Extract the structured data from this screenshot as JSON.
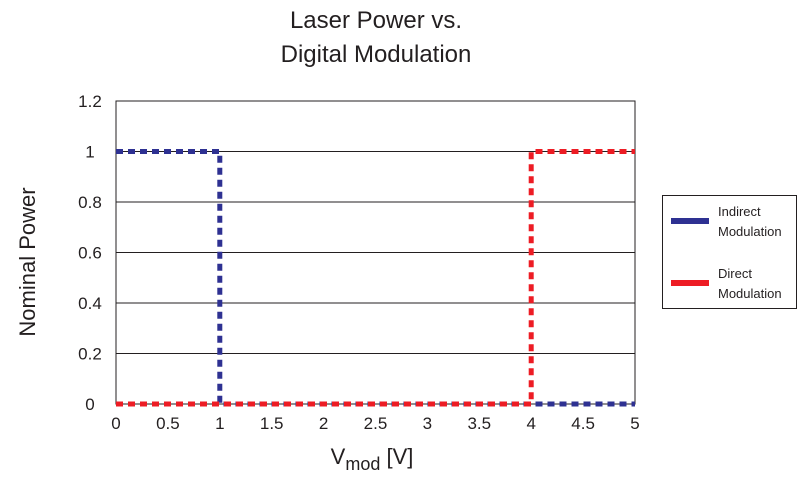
{
  "chart_data": {
    "type": "line",
    "title_line1": "Laser Power vs.",
    "title_line2": "Digital Modulation",
    "xlabel_main": "V",
    "xlabel_sub": "mod",
    "xlabel_unit": " [V]",
    "ylabel": "Nominal Power",
    "xlim": [
      0,
      5
    ],
    "ylim": [
      0,
      1.2
    ],
    "x_ticks": [
      "0",
      "0.5",
      "1",
      "1.5",
      "2",
      "2.5",
      "3",
      "3.5",
      "4",
      "4.5",
      "5"
    ],
    "y_ticks": [
      "0",
      "0.2",
      "0.4",
      "0.6",
      "0.8",
      "1",
      "1.2"
    ],
    "grid": "horizontal",
    "legend_position": "right",
    "series": [
      {
        "name_line1": "Indirect",
        "name_line2": "Modulation",
        "color": "#2e3192",
        "style": "dashed",
        "points": [
          [
            0,
            1
          ],
          [
            1,
            1
          ],
          [
            1,
            0
          ],
          [
            5,
            0
          ]
        ]
      },
      {
        "name_line1": "Direct",
        "name_line2": "Modulation",
        "color": "#ed1c24",
        "style": "dashed",
        "points": [
          [
            0,
            0
          ],
          [
            4,
            0
          ],
          [
            4,
            1
          ],
          [
            5,
            1
          ]
        ]
      }
    ]
  }
}
